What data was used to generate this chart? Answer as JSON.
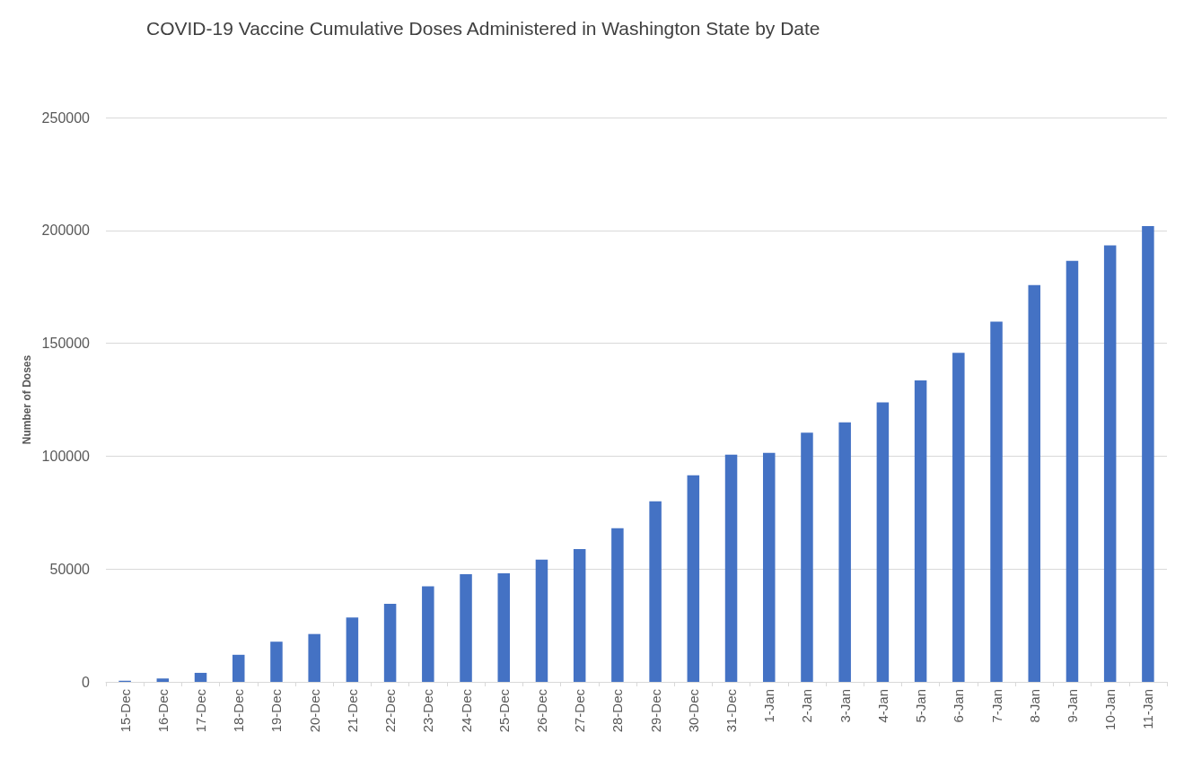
{
  "chart_data": {
    "type": "bar",
    "title": "COVID-19 Vaccine Cumulative Doses Administered in Washington State by Date",
    "ylabel": "Number of Doses",
    "categories": [
      "15-Dec",
      "16-Dec",
      "17-Dec",
      "18-Dec",
      "19-Dec",
      "20-Dec",
      "21-Dec",
      "22-Dec",
      "23-Dec",
      "24-Dec",
      "25-Dec",
      "26-Dec",
      "27-Dec",
      "28-Dec",
      "29-Dec",
      "30-Dec",
      "31-Dec",
      "1-Jan",
      "2-Jan",
      "3-Jan",
      "4-Jan",
      "5-Jan",
      "6-Jan",
      "7-Jan",
      "8-Jan",
      "9-Jan",
      "10-Jan",
      "11-Jan"
    ],
    "values": [
      500,
      1500,
      4000,
      12000,
      17800,
      21200,
      28500,
      34600,
      42300,
      47700,
      48100,
      54200,
      58800,
      68100,
      80000,
      91500,
      100700,
      101500,
      110400,
      115000,
      123800,
      133500,
      145800,
      159600,
      175800,
      186500,
      193400,
      201900
    ],
    "color": "#4472c4",
    "ylim": [
      0,
      250000
    ],
    "yticks": [
      0,
      50000,
      100000,
      150000,
      200000,
      250000
    ],
    "grid": "y"
  }
}
